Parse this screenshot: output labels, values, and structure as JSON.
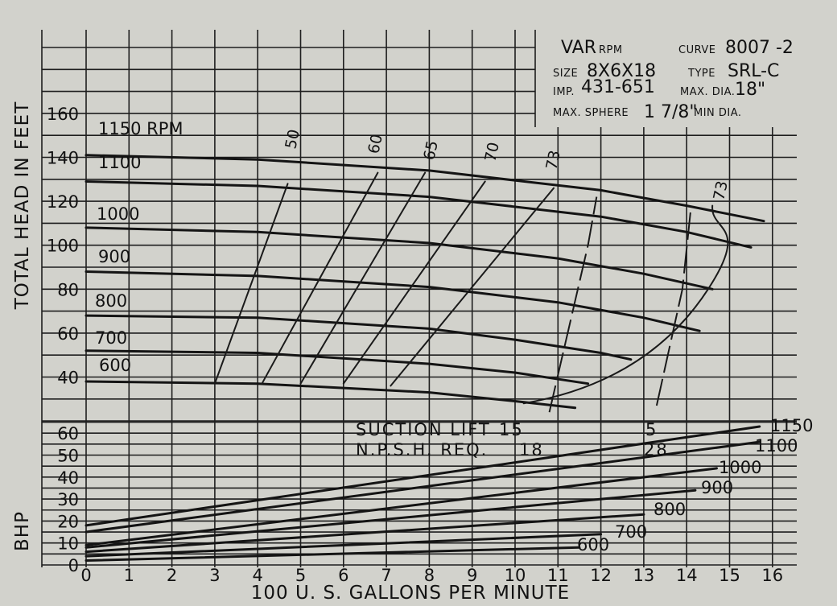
{
  "chart_data": {
    "type": "line",
    "xlabel": "100 U. S. GALLONS PER MINUTE",
    "x_ticks": [
      "0",
      "1",
      "2",
      "3",
      "4",
      "5",
      "6",
      "7",
      "8",
      "9",
      "10",
      "11",
      "12",
      "13",
      "14",
      "15",
      "16"
    ],
    "xlim": [
      0,
      16
    ],
    "head_panel": {
      "ylabel": "TOTAL HEAD IN FEET",
      "ylim": [
        20,
        180
      ],
      "y_ticks": [
        "40",
        "60",
        "80",
        "100",
        "120",
        "140",
        "160"
      ],
      "series": [
        {
          "name": "1150 RPM",
          "label": "1150 RPM",
          "x": [
            0,
            4,
            8,
            12,
            14,
            15.8
          ],
          "y": [
            141,
            139,
            134,
            125,
            118,
            111
          ]
        },
        {
          "name": "1100",
          "label": "1100",
          "x": [
            0,
            4,
            8,
            12,
            14,
            15.5
          ],
          "y": [
            129,
            127,
            122,
            113,
            106,
            99
          ]
        },
        {
          "name": "1000",
          "label": "1000",
          "x": [
            0,
            4,
            8,
            11,
            13,
            14.6
          ],
          "y": [
            108,
            106,
            101,
            94,
            87,
            80
          ]
        },
        {
          "name": "900",
          "label": "900",
          "x": [
            0,
            4,
            8,
            11,
            13,
            14.3
          ],
          "y": [
            88,
            86,
            81,
            74,
            67,
            61
          ]
        },
        {
          "name": "800",
          "label": "800",
          "x": [
            0,
            4,
            8,
            10,
            12,
            12.7
          ],
          "y": [
            68,
            67,
            62,
            57,
            51,
            48
          ]
        },
        {
          "name": "700",
          "label": "700",
          "x": [
            0,
            4,
            8,
            10,
            11.7
          ],
          "y": [
            52,
            51,
            46,
            42,
            37
          ]
        },
        {
          "name": "600",
          "label": "600",
          "x": [
            0,
            4,
            8,
            10,
            11.4
          ],
          "y": [
            38,
            37,
            33,
            29,
            26
          ]
        }
      ],
      "efficiency_curves": [
        {
          "label": "50",
          "x": [
            3,
            4.7
          ],
          "y": [
            37,
            128
          ]
        },
        {
          "label": "60",
          "x": [
            4.1,
            6.8
          ],
          "y": [
            37,
            133
          ]
        },
        {
          "label": "65",
          "x": [
            5,
            7.9
          ],
          "y": [
            37,
            133
          ]
        },
        {
          "label": "70",
          "x": [
            6,
            9.3
          ],
          "y": [
            37,
            129
          ]
        },
        {
          "label": "73",
          "x": [
            7.1,
            10.9
          ],
          "y": [
            36,
            126
          ]
        },
        {
          "label": "73",
          "x": [
            10.2,
            12,
            13.5,
            14.5,
            14.6
          ],
          "y": [
            28,
            34,
            50,
            80,
            118
          ]
        }
      ],
      "npsh_curves": [
        {
          "x": [
            10.8,
            11.7,
            11.9
          ],
          "y": [
            24,
            100,
            122
          ]
        },
        {
          "x": [
            13.3,
            13.9,
            14.1
          ],
          "y": [
            27,
            80,
            117
          ]
        }
      ]
    },
    "bhp_panel": {
      "ylabel": "BHP",
      "ylim": [
        0,
        65
      ],
      "y_ticks": [
        "0",
        "10",
        "20",
        "30",
        "40",
        "50",
        "60"
      ],
      "series": [
        {
          "name": "1150",
          "label": "1150",
          "x": [
            0,
            15.7
          ],
          "y": [
            18,
            63
          ]
        },
        {
          "name": "1100",
          "label": "1100",
          "x": [
            0,
            15.7
          ],
          "y": [
            15,
            56
          ]
        },
        {
          "name": "1000",
          "label": "1000",
          "x": [
            0,
            14.7
          ],
          "y": [
            9,
            44
          ]
        },
        {
          "name": "900",
          "label": "900",
          "x": [
            0,
            14.2
          ],
          "y": [
            8,
            34
          ]
        },
        {
          "name": "800",
          "label": "800",
          "x": [
            0,
            13
          ],
          "y": [
            6,
            23
          ]
        },
        {
          "name": "700",
          "label": "700",
          "x": [
            0,
            12
          ],
          "y": [
            4,
            14
          ]
        },
        {
          "name": "600",
          "label": "600",
          "x": [
            0,
            11.5
          ],
          "y": [
            2,
            8
          ]
        }
      ]
    },
    "suction_lift": {
      "label": "SUCTION LIFT",
      "values": [
        "15",
        "5"
      ]
    },
    "npsh_req": {
      "label": "N.P.S.H. REQ.",
      "values": [
        "18",
        "28"
      ]
    },
    "grid": true
  },
  "info": {
    "rpm_big": "VAR",
    "rpm_small": "RPM",
    "curve_small": "CURVE",
    "curve_value": "8007 -2",
    "size_small": "SIZE",
    "size_value": "8X6X18",
    "type_small": "TYPE",
    "type_value": "SRL-C",
    "imp_small": "IMP.",
    "imp_value": "431-651",
    "maxdia_small": "MAX. DIA.",
    "maxdia_value": "18\"",
    "sphere_small": "MAX. SPHERE",
    "sphere_value": "1 7/8\"",
    "mindia_small": "MIN DIA."
  }
}
